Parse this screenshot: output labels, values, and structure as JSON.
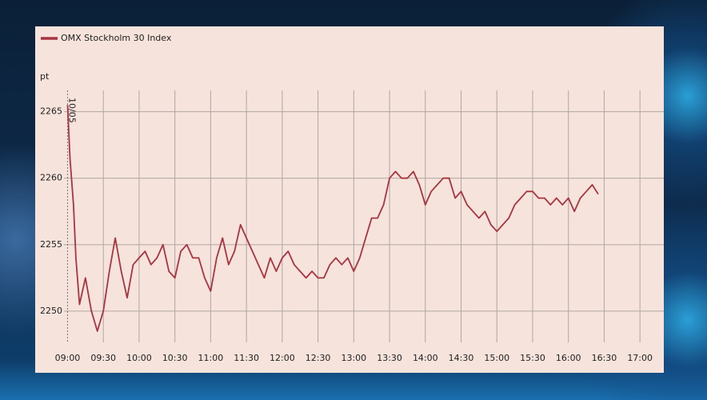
{
  "chart_data": {
    "type": "line",
    "annotation": "10/05",
    "y_label": "pt",
    "x": [
      540,
      542,
      545,
      547,
      550,
      555,
      560,
      565,
      570,
      575,
      580,
      585,
      590,
      595,
      600,
      605,
      610,
      615,
      620,
      625,
      630,
      635,
      640,
      645,
      650,
      655,
      660,
      665,
      670,
      675,
      680,
      685,
      690,
      695,
      700,
      705,
      710,
      715,
      720,
      725,
      730,
      735,
      740,
      745,
      750,
      755,
      760,
      765,
      770,
      775,
      780,
      785,
      790,
      795,
      800,
      805,
      810,
      815,
      820,
      825,
      830,
      835,
      840,
      845,
      850,
      855,
      860,
      865,
      870,
      875,
      880,
      885,
      890,
      895,
      900,
      905,
      910,
      915,
      920,
      925,
      930,
      935,
      940,
      945,
      950,
      955,
      960,
      965,
      970,
      975,
      980,
      985
    ],
    "series": [
      {
        "name": "OMX Stockholm 30 Index",
        "color": "#a8343f",
        "values": [
          2265.5,
          2261.5,
          2258,
          2254,
          2250.5,
          2252.5,
          2250,
          2248.5,
          2250,
          2253,
          2255.5,
          2253,
          2251,
          2253.5,
          2254,
          2254.5,
          2253.5,
          2254,
          2255,
          2253,
          2252.5,
          2254.5,
          2255,
          2254,
          2254,
          2252.5,
          2251.5,
          2254,
          2255.5,
          2253.5,
          2254.5,
          2256.5,
          2255.5,
          2254.5,
          2253.5,
          2252.5,
          2254,
          2253,
          2254,
          2254.5,
          2253.5,
          2253,
          2252.5,
          2253,
          2252.5,
          2252.5,
          2253.5,
          2254,
          2253.5,
          2254,
          2253,
          2254,
          2255.5,
          2257,
          2257,
          2258,
          2260,
          2260.5,
          2260,
          2260,
          2260.5,
          2259.5,
          2258,
          2259,
          2259.5,
          2260,
          2260,
          2258.5,
          2259,
          2258,
          2257.5,
          2257,
          2257.5,
          2256.5,
          2256,
          2256.5,
          2257,
          2258,
          2258.5,
          2259,
          2259,
          2258.5,
          2258.5,
          2258,
          2258.5,
          2258,
          2258.5,
          2257.5,
          2258.5,
          2259,
          2259.5,
          2258.8
        ]
      }
    ],
    "xlim": [
      537,
      1040
    ],
    "xticks": [
      {
        "value": 540,
        "label": "09:00"
      },
      {
        "value": 570,
        "label": "09:30"
      },
      {
        "value": 600,
        "label": "10:00"
      },
      {
        "value": 630,
        "label": "10:30"
      },
      {
        "value": 660,
        "label": "11:00"
      },
      {
        "value": 690,
        "label": "11:30"
      },
      {
        "value": 720,
        "label": "12:00"
      },
      {
        "value": 750,
        "label": "12:30"
      },
      {
        "value": 780,
        "label": "13:00"
      },
      {
        "value": 810,
        "label": "13:30"
      },
      {
        "value": 840,
        "label": "14:00"
      },
      {
        "value": 870,
        "label": "14:30"
      },
      {
        "value": 900,
        "label": "15:00"
      },
      {
        "value": 930,
        "label": "15:30"
      },
      {
        "value": 960,
        "label": "16:00"
      },
      {
        "value": 990,
        "label": "16:30"
      },
      {
        "value": 1020,
        "label": "17:00"
      }
    ],
    "ylim": [
      2247.65,
      2266.6
    ],
    "yticks": [
      2250,
      2255,
      2260,
      2265
    ],
    "grid": true
  }
}
